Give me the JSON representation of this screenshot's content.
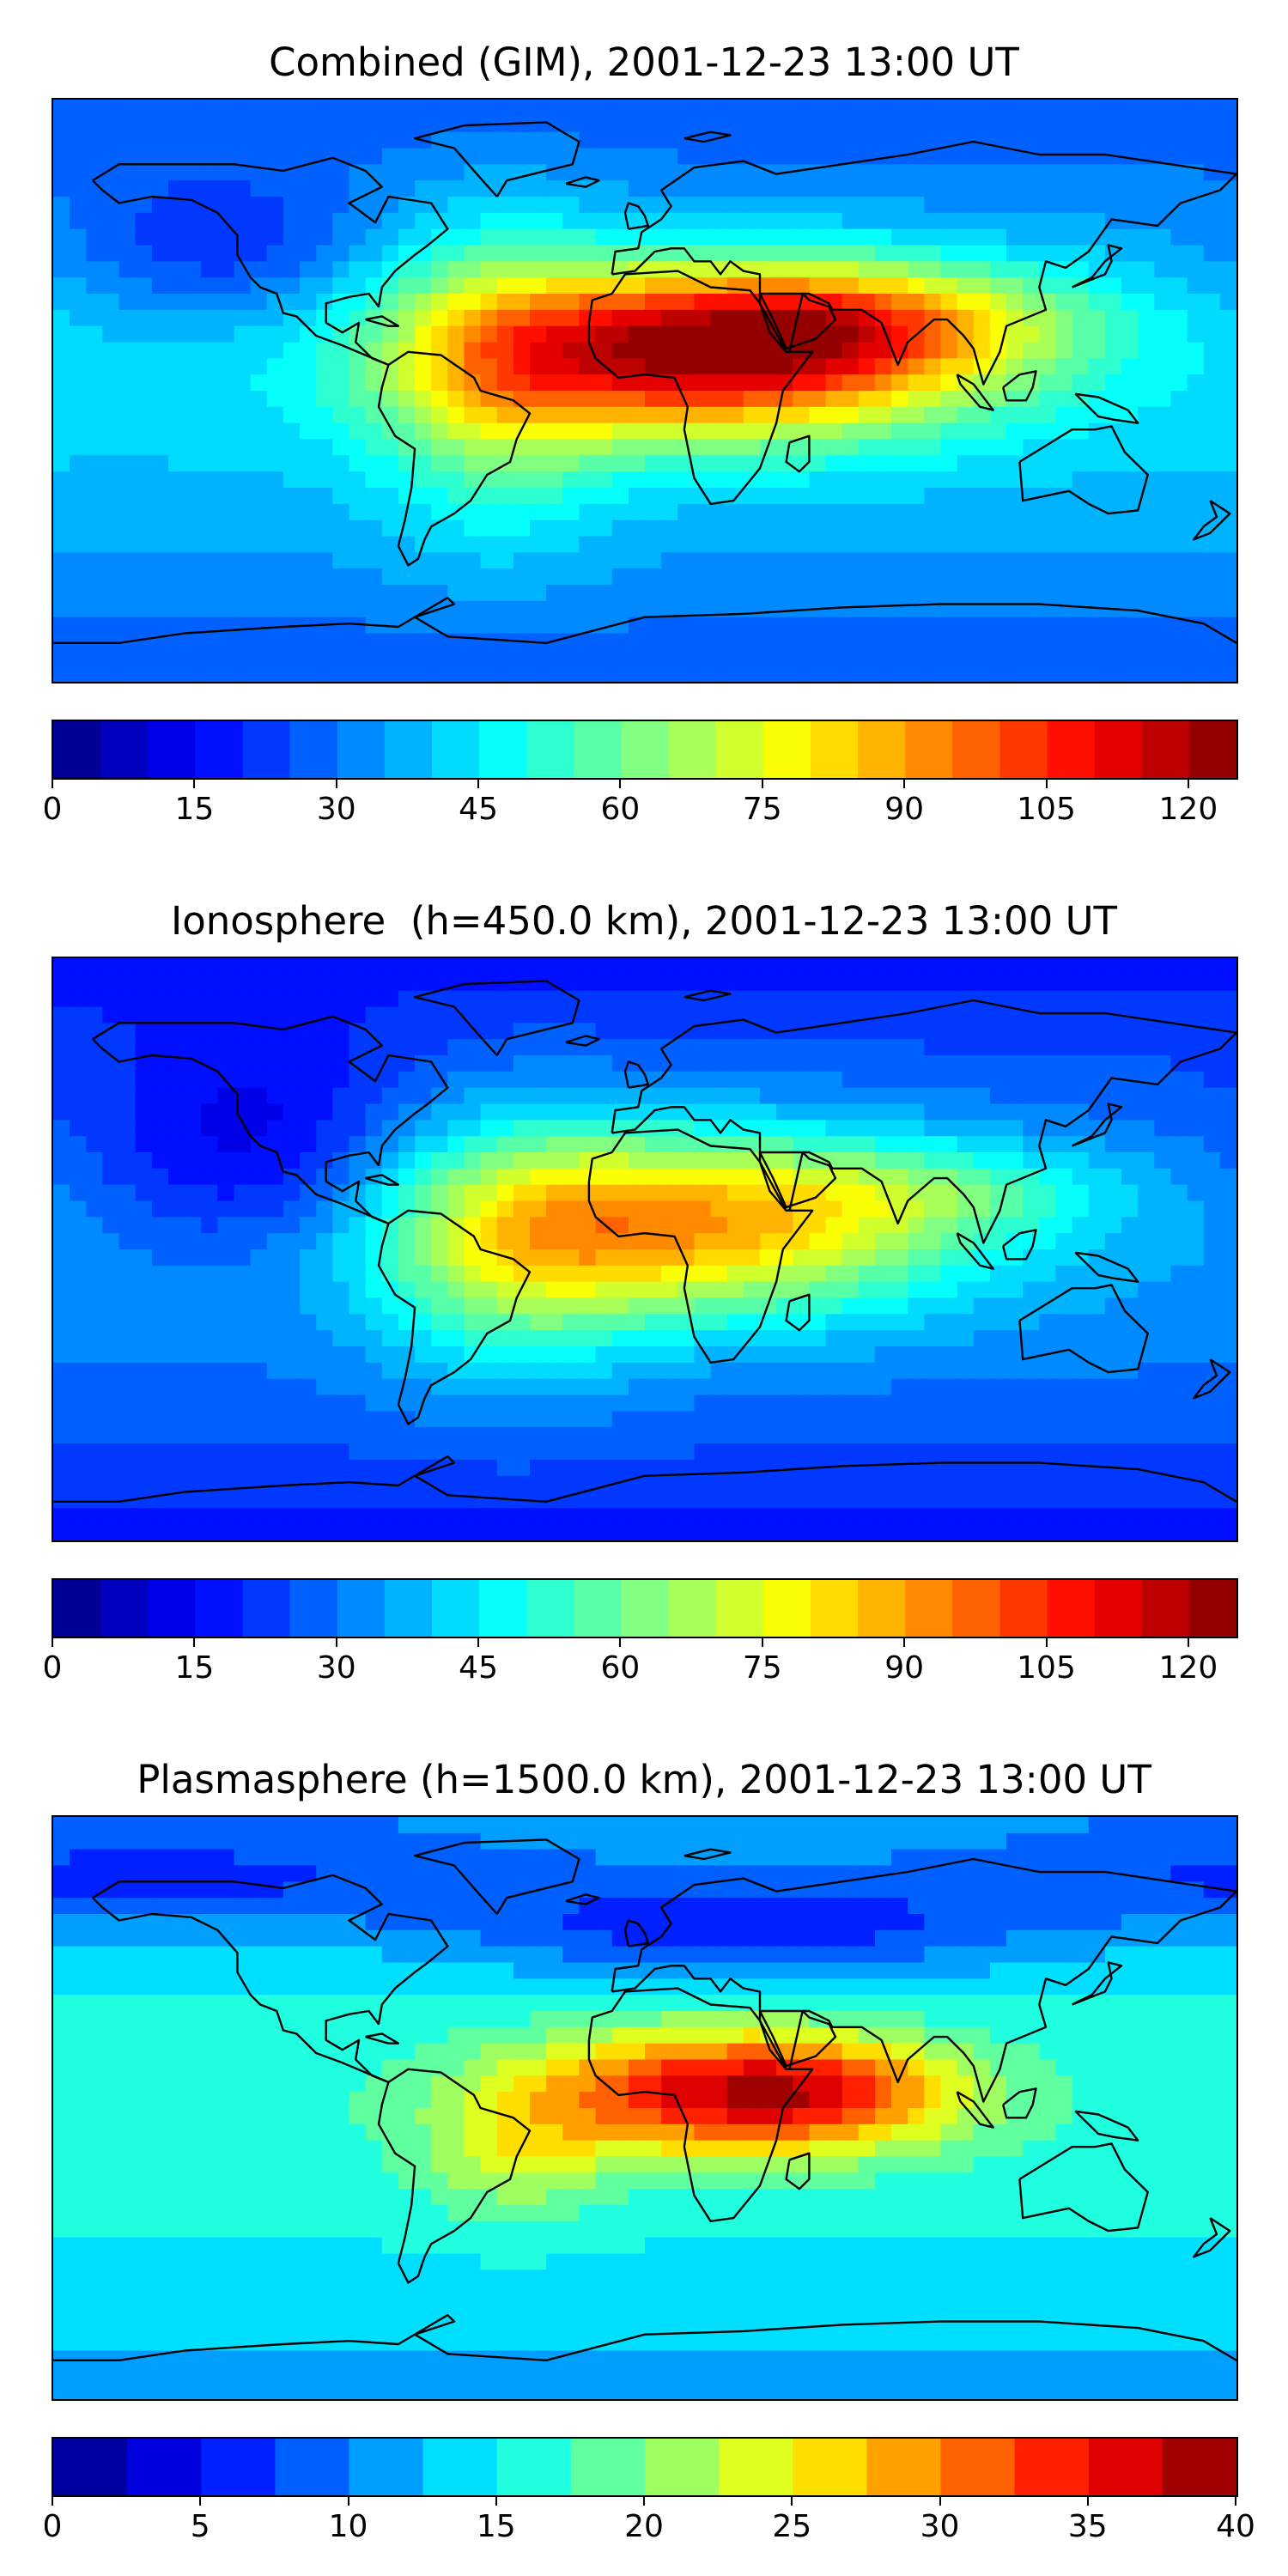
{
  "panels": [
    {
      "title": "Combined (GIM), 2001-12-23 13:00 UT",
      "colorbar": {
        "min": 0,
        "max": 125,
        "levels": 25,
        "ticks": [
          "0",
          "15",
          "30",
          "45",
          "60",
          "75",
          "90",
          "105",
          "120"
        ],
        "tick_values": [
          0,
          15,
          30,
          45,
          60,
          75,
          90,
          105,
          120
        ]
      },
      "background_level": 0.26,
      "blobs": [
        {
          "lon": 20,
          "lat": 12,
          "sx": 55,
          "sy": 18,
          "amp": 0.62
        },
        {
          "lon": -45,
          "lat": 5,
          "sx": 25,
          "sy": 35,
          "amp": 0.18
        },
        {
          "lon": 70,
          "lat": 22,
          "sx": 45,
          "sy": 12,
          "amp": 0.22
        },
        {
          "lon": -130,
          "lat": 45,
          "sx": 30,
          "sy": 15,
          "amp": -0.12
        }
      ]
    },
    {
      "title": "Ionosphere  (h=450.0 km), 2001-12-23 13:00 UT",
      "colorbar": {
        "min": 0,
        "max": 125,
        "levels": 25,
        "ticks": [
          "0",
          "15",
          "30",
          "45",
          "60",
          "75",
          "90",
          "105",
          "120"
        ],
        "tick_values": [
          0,
          15,
          30,
          45,
          60,
          75,
          90,
          105,
          120
        ]
      },
      "background_level": 0.2,
      "blobs": [
        {
          "lon": 15,
          "lat": 8,
          "sx": 55,
          "sy": 20,
          "amp": 0.42
        },
        {
          "lon": -40,
          "lat": 0,
          "sx": 30,
          "sy": 30,
          "amp": 0.18
        },
        {
          "lon": 90,
          "lat": 18,
          "sx": 40,
          "sy": 10,
          "amp": 0.12
        },
        {
          "lon": -120,
          "lat": 30,
          "sx": 35,
          "sy": 25,
          "amp": -0.14
        }
      ]
    },
    {
      "title": "Plasmasphere (h=1500.0 km), 2001-12-23 13:00 UT",
      "colorbar": {
        "min": 0,
        "max": 40,
        "levels": 16,
        "ticks": [
          "0",
          "5",
          "10",
          "15",
          "20",
          "25",
          "30",
          "35",
          "40"
        ],
        "tick_values": [
          0,
          5,
          10,
          15,
          20,
          25,
          30,
          35,
          40
        ]
      },
      "background_level": 0.34,
      "blobs": [
        {
          "lon": 15,
          "lat": 5,
          "sx": 40,
          "sy": 14,
          "amp": 0.42
        },
        {
          "lon": 60,
          "lat": 5,
          "sx": 30,
          "sy": 12,
          "amp": 0.25
        },
        {
          "lon": -40,
          "lat": -15,
          "sx": 20,
          "sy": 15,
          "amp": 0.15
        },
        {
          "lon": 30,
          "lat": 55,
          "sx": 60,
          "sy": 12,
          "amp": -0.2
        },
        {
          "lon": -150,
          "lat": 70,
          "sx": 80,
          "sy": 12,
          "amp": -0.15
        }
      ]
    }
  ],
  "colormap": "jet",
  "projection": "PlateCarree",
  "map_lon_range": [
    -180,
    180
  ],
  "map_lat_range": [
    -90,
    90
  ]
}
